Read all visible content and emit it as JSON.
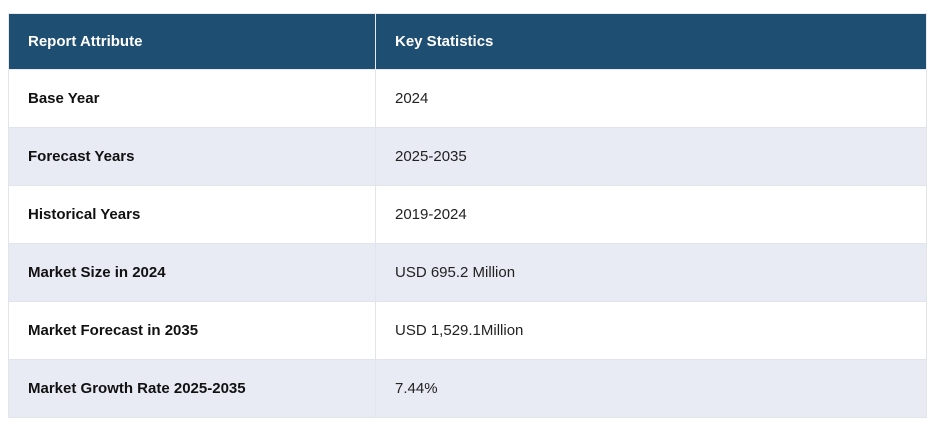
{
  "table": {
    "columns": [
      {
        "label": "Report Attribute"
      },
      {
        "label": "Key Statistics"
      }
    ],
    "rows": [
      {
        "attribute": "Base Year",
        "value": "2024"
      },
      {
        "attribute": "Forecast Years",
        "value": "2025-2035"
      },
      {
        "attribute": "Historical Years",
        "value": "2019-2024"
      },
      {
        "attribute": "Market Size in 2024",
        "value": "USD 695.2 Million"
      },
      {
        "attribute": "Market Forecast in 2035",
        "value": "USD 1,529.1Million"
      },
      {
        "attribute": "Market Growth Rate 2025-2035",
        "value": "7.44%"
      }
    ],
    "colors": {
      "header_bg": "#1f4e73",
      "header_text": "#ffffff",
      "row_bg": "#ffffff",
      "row_alt_bg": "#e8eaf4",
      "border": "#d9dce3"
    }
  }
}
